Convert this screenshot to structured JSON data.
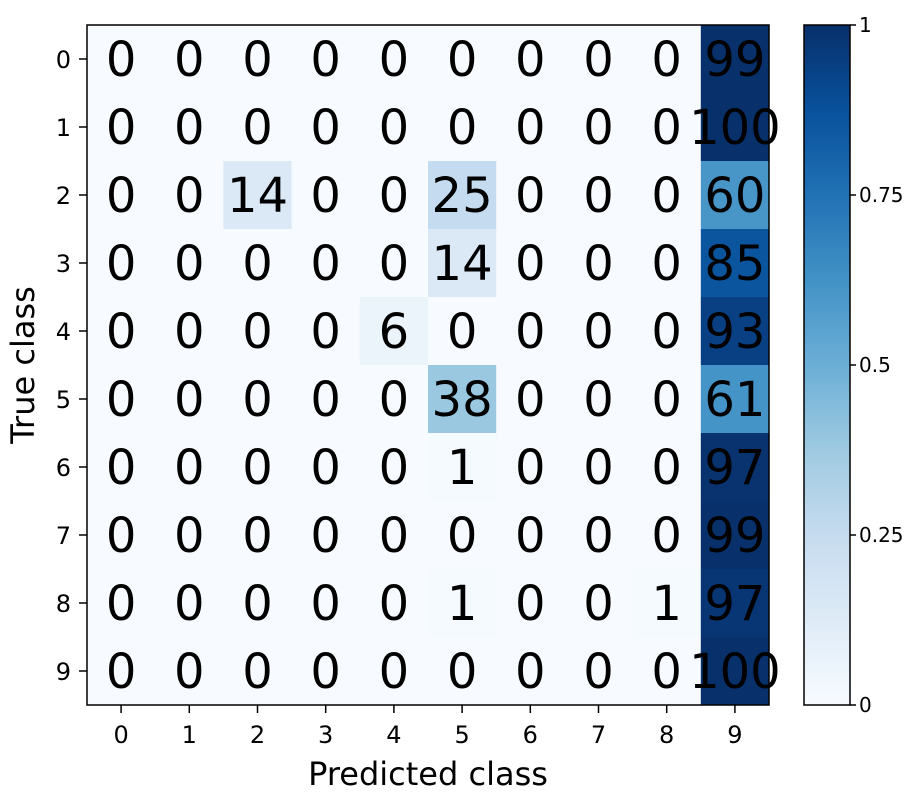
{
  "chart_data": {
    "type": "heatmap",
    "title": "",
    "xlabel": "Predicted class",
    "ylabel": "True class",
    "x_categories": [
      "0",
      "1",
      "2",
      "3",
      "4",
      "5",
      "6",
      "7",
      "8",
      "9"
    ],
    "y_categories": [
      "0",
      "1",
      "2",
      "3",
      "4",
      "5",
      "6",
      "7",
      "8",
      "9"
    ],
    "values": [
      [
        0,
        0,
        0,
        0,
        0,
        0,
        0,
        0,
        0,
        99
      ],
      [
        0,
        0,
        0,
        0,
        0,
        0,
        0,
        0,
        0,
        100
      ],
      [
        0,
        0,
        14,
        0,
        0,
        25,
        0,
        0,
        0,
        60
      ],
      [
        0,
        0,
        0,
        0,
        0,
        14,
        0,
        0,
        0,
        85
      ],
      [
        0,
        0,
        0,
        0,
        6,
        0,
        0,
        0,
        0,
        93
      ],
      [
        0,
        0,
        0,
        0,
        0,
        38,
        0,
        0,
        0,
        61
      ],
      [
        0,
        0,
        0,
        0,
        0,
        1,
        0,
        0,
        0,
        97
      ],
      [
        0,
        0,
        0,
        0,
        0,
        0,
        0,
        0,
        0,
        99
      ],
      [
        0,
        0,
        0,
        0,
        0,
        1,
        0,
        0,
        1,
        97
      ],
      [
        0,
        0,
        0,
        0,
        0,
        0,
        0,
        0,
        0,
        100
      ]
    ],
    "colormap": "Blues",
    "colorbar": {
      "range": [
        0,
        1
      ],
      "ticks": [
        0,
        0.25,
        0.5,
        0.75,
        1
      ],
      "tick_labels": [
        "0",
        "0.25",
        "0.5",
        "0.75",
        "1"
      ]
    },
    "grid": false,
    "legend": "colorbar-right"
  }
}
